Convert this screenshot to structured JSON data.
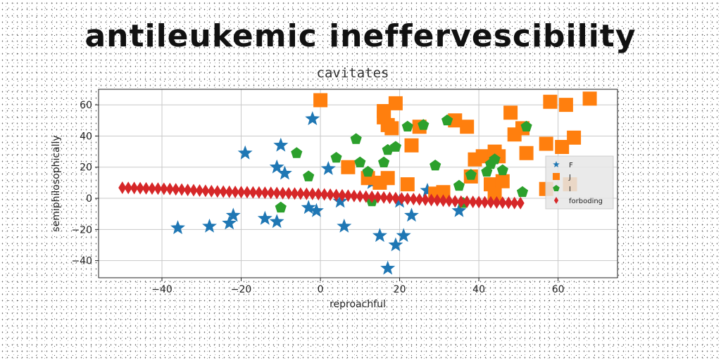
{
  "banner_title": "antileukemic ineffervescibility",
  "chart_data": {
    "type": "scatter",
    "title": "cavitates",
    "xlabel": "reproachful",
    "ylabel": "semiphilosophically",
    "xlim": [
      -56,
      75
    ],
    "ylim": [
      -51,
      70
    ],
    "xticks": [
      -40,
      -20,
      0,
      20,
      40,
      60
    ],
    "yticks": [
      -40,
      -20,
      0,
      20,
      40,
      60
    ],
    "grid": true,
    "legend_position": "center-right",
    "series": [
      {
        "name": "F",
        "marker": "star",
        "color": "#1f77b4",
        "points": [
          [
            -36,
            -19
          ],
          [
            -28,
            -18
          ],
          [
            -23,
            -16
          ],
          [
            -22,
            -11
          ],
          [
            -19,
            29
          ],
          [
            -14,
            -13
          ],
          [
            -11,
            20
          ],
          [
            -11,
            -15
          ],
          [
            -10,
            34
          ],
          [
            -9,
            16
          ],
          [
            -3,
            -6
          ],
          [
            -2,
            51
          ],
          [
            -1,
            -8
          ],
          [
            2,
            19
          ],
          [
            5,
            -2
          ],
          [
            6,
            -18
          ],
          [
            13,
            10
          ],
          [
            15,
            -24
          ],
          [
            17,
            -45
          ],
          [
            19,
            -30
          ],
          [
            20,
            -2
          ],
          [
            21,
            -24
          ],
          [
            23,
            -11
          ],
          [
            27,
            5
          ],
          [
            35,
            -8
          ]
        ]
      },
      {
        "name": "J",
        "marker": "square",
        "color": "#ff7f0e",
        "points": [
          [
            0,
            63
          ],
          [
            7,
            20
          ],
          [
            12,
            13
          ],
          [
            15,
            10
          ],
          [
            16,
            56
          ],
          [
            16,
            52
          ],
          [
            17,
            47
          ],
          [
            17,
            13
          ],
          [
            18,
            45
          ],
          [
            19,
            61
          ],
          [
            22,
            9
          ],
          [
            23,
            34
          ],
          [
            25,
            46
          ],
          [
            29,
            3
          ],
          [
            31,
            4
          ],
          [
            34,
            50
          ],
          [
            37,
            46
          ],
          [
            38,
            14
          ],
          [
            39,
            25
          ],
          [
            41,
            27
          ],
          [
            43,
            9
          ],
          [
            44,
            3
          ],
          [
            44,
            30
          ],
          [
            45,
            27
          ],
          [
            46,
            11
          ],
          [
            48,
            55
          ],
          [
            49,
            41
          ],
          [
            51,
            45
          ],
          [
            52,
            29
          ],
          [
            57,
            35
          ],
          [
            57,
            6
          ],
          [
            58,
            62
          ],
          [
            61,
            33
          ],
          [
            62,
            60
          ],
          [
            63,
            9
          ],
          [
            64,
            39
          ],
          [
            68,
            64
          ]
        ]
      },
      {
        "name": "I",
        "marker": "pentagon",
        "color": "#2ca02c",
        "points": [
          [
            -10,
            -6
          ],
          [
            -6,
            29
          ],
          [
            -3,
            14
          ],
          [
            4,
            26
          ],
          [
            9,
            38
          ],
          [
            10,
            23
          ],
          [
            12,
            17
          ],
          [
            13,
            -2
          ],
          [
            16,
            23
          ],
          [
            17,
            31
          ],
          [
            19,
            33
          ],
          [
            22,
            46
          ],
          [
            26,
            47
          ],
          [
            29,
            21
          ],
          [
            32,
            50
          ],
          [
            35,
            8
          ],
          [
            36,
            -3
          ],
          [
            38,
            15
          ],
          [
            42,
            17
          ],
          [
            43,
            22
          ],
          [
            44,
            25
          ],
          [
            46,
            18
          ],
          [
            51,
            4
          ],
          [
            52,
            46
          ]
        ]
      },
      {
        "name": "forboding",
        "marker": "diamond",
        "color": "#d62728",
        "points": [
          [
            -50,
            6.8
          ],
          [
            -48.5,
            6.7
          ],
          [
            -47,
            6.6
          ],
          [
            -45.5,
            6.5
          ],
          [
            -44,
            6.4
          ],
          [
            -42.5,
            6.3
          ],
          [
            -41,
            6.2
          ],
          [
            -39.5,
            6.1
          ],
          [
            -38,
            6.0
          ],
          [
            -36.5,
            5.8
          ],
          [
            -35,
            5.6
          ],
          [
            -33.5,
            5.4
          ],
          [
            -32,
            5.2
          ],
          [
            -30.5,
            5.0
          ],
          [
            -29,
            4.8
          ],
          [
            -27.5,
            4.6
          ],
          [
            -26,
            4.4
          ],
          [
            -24.5,
            4.3
          ],
          [
            -23,
            4.2
          ],
          [
            -21.5,
            4.1
          ],
          [
            -20,
            4.0
          ],
          [
            -18.5,
            3.9
          ],
          [
            -17,
            3.8
          ],
          [
            -15.5,
            3.7
          ],
          [
            -14,
            3.6
          ],
          [
            -12.5,
            3.5
          ],
          [
            -11,
            3.4
          ],
          [
            -9.5,
            3.3
          ],
          [
            -8,
            3.2
          ],
          [
            -6.5,
            3.1
          ],
          [
            -5,
            3.0
          ],
          [
            -3.5,
            2.9
          ],
          [
            -2,
            2.8
          ],
          [
            -0.5,
            2.7
          ],
          [
            1,
            2.5
          ],
          [
            2.5,
            2.3
          ],
          [
            4,
            2.1
          ],
          [
            5.5,
            1.9
          ],
          [
            7,
            1.7
          ],
          [
            8.5,
            1.5
          ],
          [
            10,
            1.3
          ],
          [
            11.5,
            1.1
          ],
          [
            13,
            0.9
          ],
          [
            14.5,
            0.7
          ],
          [
            16,
            0.5
          ],
          [
            17.5,
            0.3
          ],
          [
            19,
            0.1
          ],
          [
            20.5,
            -0.1
          ],
          [
            22,
            -0.3
          ],
          [
            23.5,
            -0.5
          ],
          [
            25,
            -0.7
          ],
          [
            26.5,
            -0.9
          ],
          [
            28,
            -1.1
          ],
          [
            29.5,
            -1.3
          ],
          [
            31,
            -1.5
          ],
          [
            32.5,
            -1.7
          ],
          [
            34,
            -1.9
          ],
          [
            35.5,
            -2.1
          ],
          [
            37,
            -2.2
          ],
          [
            38.5,
            -2.3
          ],
          [
            40,
            -2.4
          ],
          [
            41.5,
            -2.5
          ],
          [
            43,
            -2.6
          ],
          [
            44.5,
            -2.7
          ],
          [
            46,
            -2.8
          ],
          [
            47.5,
            -2.9
          ],
          [
            49,
            -3.0
          ],
          [
            50.5,
            -3.1
          ]
        ]
      }
    ]
  }
}
